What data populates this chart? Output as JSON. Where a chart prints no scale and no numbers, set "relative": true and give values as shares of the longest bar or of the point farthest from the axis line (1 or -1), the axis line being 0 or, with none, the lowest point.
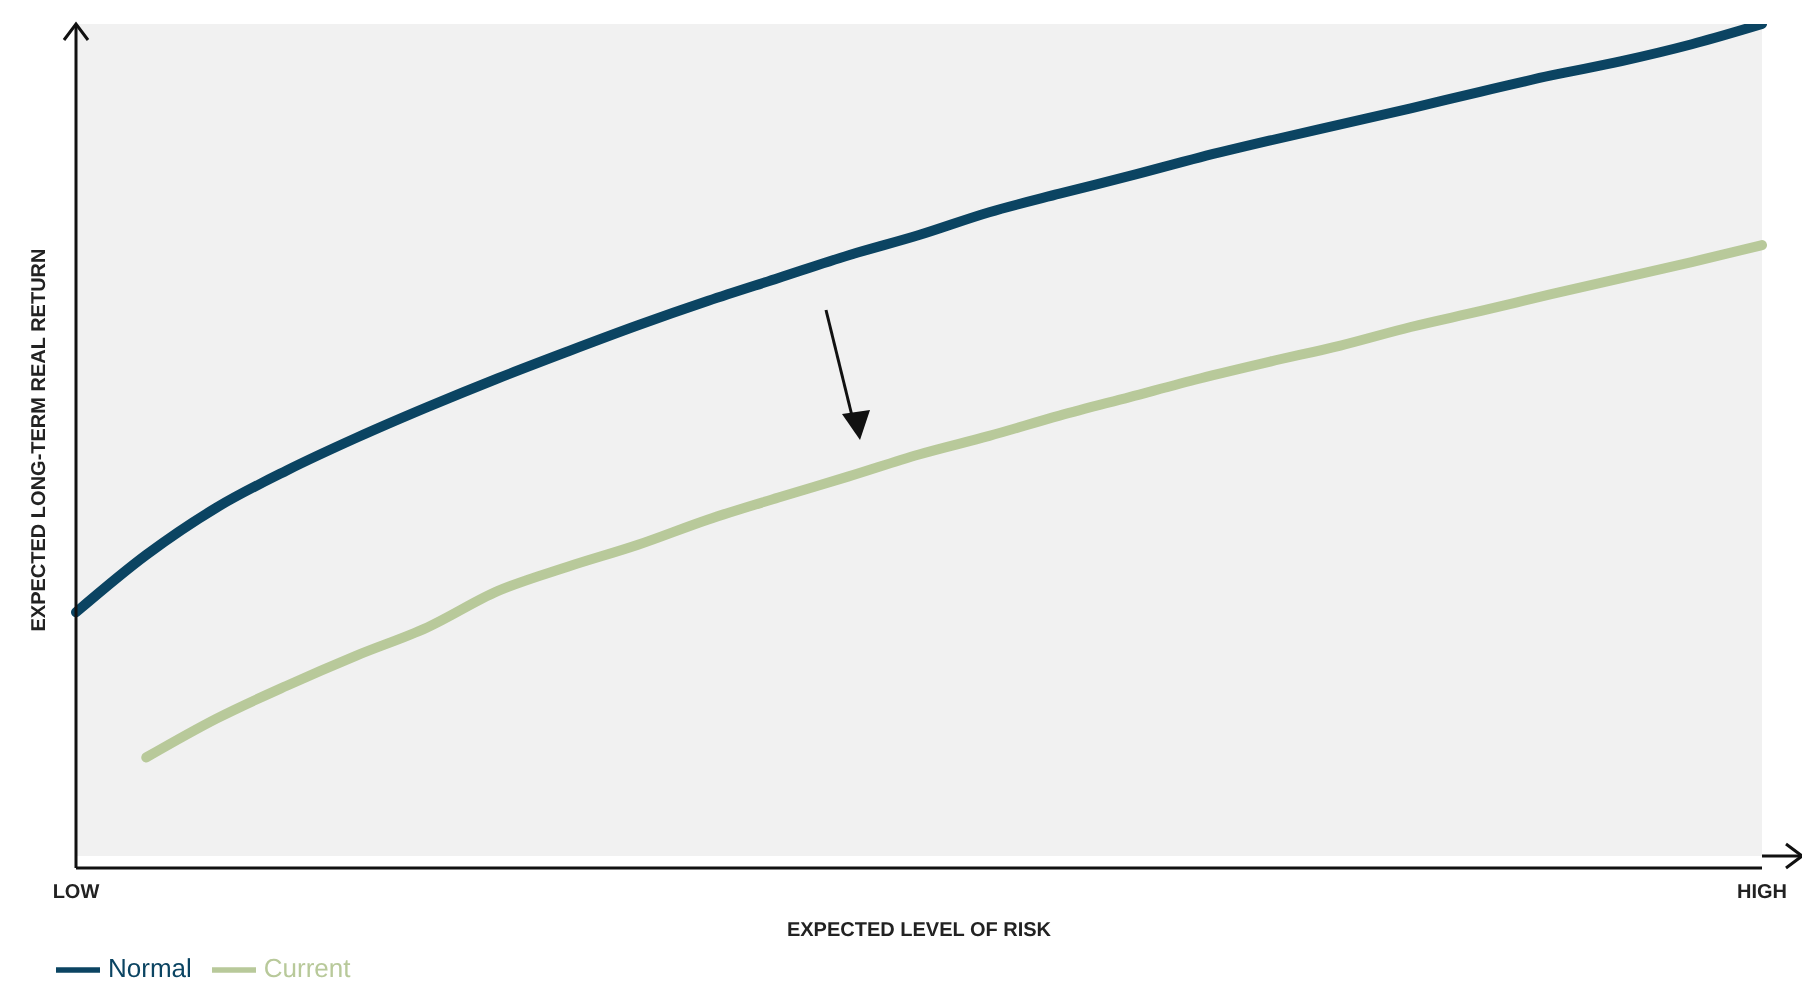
{
  "chart_data": {
    "type": "line",
    "relative": true,
    "xlabel": "EXPECTED LEVEL OF RISK",
    "ylabel": "EXPECTED LONG-TERM REAL RETURN",
    "categories": [
      "LOW",
      null,
      null,
      null,
      null,
      null,
      null,
      null,
      null,
      null,
      null,
      null,
      null,
      null,
      null,
      null,
      null,
      null,
      null,
      null,
      null,
      null,
      null,
      null,
      "HIGH"
    ],
    "legend": "bottom left",
    "marker": "none",
    "line_style": "solid",
    "series": [
      {
        "name": "Normal",
        "color": "#0b4462",
        "values": [
          0.303,
          0.371,
          0.427,
          0.471,
          0.51,
          0.546,
          0.58,
          0.612,
          0.643,
          0.672,
          0.699,
          0.726,
          0.75,
          0.777,
          0.799,
          0.82,
          0.842,
          0.862,
          0.881,
          0.9,
          0.92,
          0.939,
          0.956,
          0.976,
          1
        ]
      },
      {
        "name": "Current",
        "color": "#b8c99a",
        "values": [
          null,
          0.131,
          0.177,
          0.216,
          0.252,
          0.285,
          0.328,
          0.357,
          0.383,
          0.413,
          0.439,
          0.464,
          0.49,
          0.512,
          0.536,
          0.558,
          0.58,
          0.6,
          0.619,
          0.641,
          0.66,
          0.68,
          0.699,
          0.718,
          0.738
        ]
      }
    ]
  }
}
